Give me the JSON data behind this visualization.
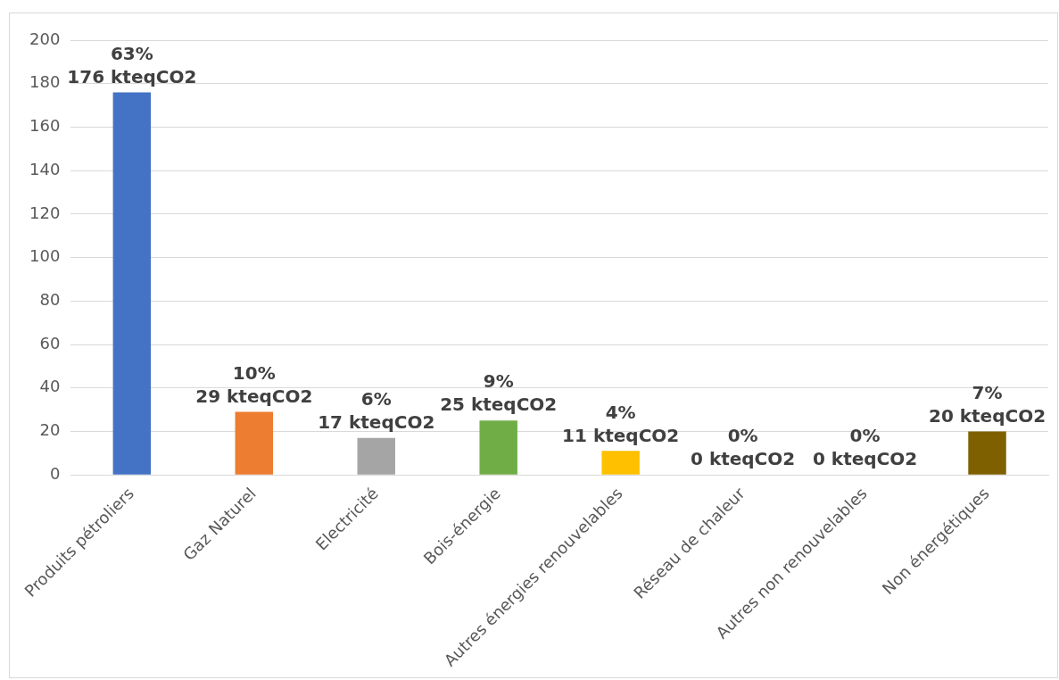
{
  "chart_data": {
    "type": "bar",
    "categories": [
      "Produits pétroliers",
      "Gaz Naturel",
      "Electricité",
      "Bois-énergie",
      "Autres énergies renouvelables",
      "Réseau de chaleur",
      "Autres non renouvelables",
      "Non énergétiques"
    ],
    "values": [
      176,
      29,
      17,
      25,
      11,
      0,
      0,
      20
    ],
    "colors": [
      "#4472c4",
      "#ed7d31",
      "#a5a5a5",
      "#70ad47",
      "#ffc000",
      "#5b9bd5",
      "#264478",
      "#7f6000"
    ],
    "value_labels": [
      "63%\n176 kteqCO2",
      "10%\n29 kteqCO2",
      "6%\n17 kteqCO2",
      "9%\n25 kteqCO2",
      "4%\n11 kteqCO2",
      "0%\n0 kteqCO2",
      "0%\n0 kteqCO2",
      "7%\n20 kteqCO2"
    ],
    "ylim": [
      0,
      200
    ],
    "yticks": [
      0,
      20,
      40,
      60,
      80,
      100,
      120,
      140,
      160,
      180,
      200
    ],
    "grid": "y",
    "legend": false
  }
}
